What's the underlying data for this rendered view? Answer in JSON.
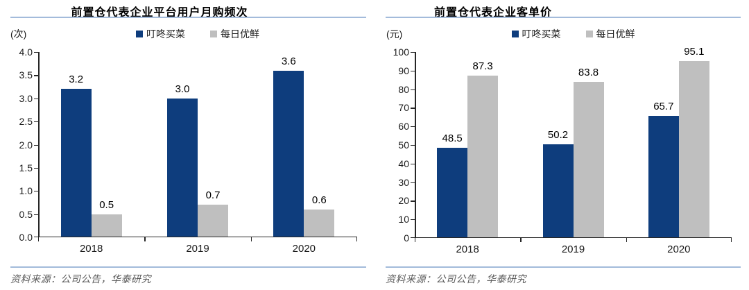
{
  "colors": {
    "series_navy": "#0e3d7d",
    "series_gray": "#bfbfbf",
    "rule_blue": "#a3bbdb",
    "axis": "#262626",
    "source_text": "#595959"
  },
  "chart_data": [
    {
      "type": "bar",
      "title": "前置仓代表企业平台用户月购频次",
      "unit_label": "(次)",
      "categories": [
        "2018",
        "2019",
        "2020"
      ],
      "series": [
        {
          "name": "叮咚买菜",
          "color": "#0e3d7d",
          "values": [
            3.2,
            3.0,
            3.6
          ]
        },
        {
          "name": "每日优鲜",
          "color": "#bfbfbf",
          "values": [
            0.5,
            0.7,
            0.6
          ]
        }
      ],
      "ylim": [
        0,
        4.0
      ],
      "ytick_step": 0.5,
      "ytick_decimals": 1,
      "value_decimals": 1,
      "legend_position": "top",
      "grid": false,
      "source_note": "资料来源：公司公告，华泰研究"
    },
    {
      "type": "bar",
      "title": "前置仓代表企业客单价",
      "unit_label": "(元)",
      "categories": [
        "2018",
        "2019",
        "2020"
      ],
      "series": [
        {
          "name": "叮咚买菜",
          "color": "#0e3d7d",
          "values": [
            48.5,
            50.2,
            65.7
          ]
        },
        {
          "name": "每日优鲜",
          "color": "#bfbfbf",
          "values": [
            87.3,
            83.8,
            95.1
          ]
        }
      ],
      "ylim": [
        0,
        100
      ],
      "ytick_step": 10,
      "ytick_decimals": 0,
      "value_decimals": 1,
      "legend_position": "top",
      "grid": false,
      "source_note": "资料来源：公司公告，华泰研究"
    }
  ]
}
